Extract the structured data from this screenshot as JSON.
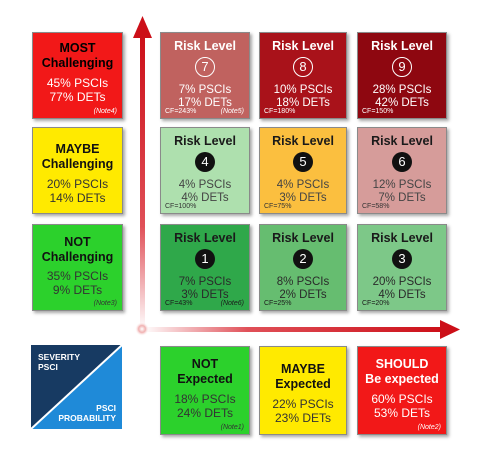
{
  "challenge_rows": [
    {
      "title1": "MOST",
      "title2": "Challenging",
      "psci": "45% PSCIs",
      "det": "77% DETs",
      "note": "(Note4)",
      "color": "#f21818"
    },
    {
      "title1": "MAYBE",
      "title2": "Challenging",
      "psci": "20% PSCIs",
      "det": "14% DETs",
      "note": "",
      "color": "#ffea00"
    },
    {
      "title1": "NOT",
      "title2": "Challenging",
      "psci": "35% PSCIs",
      "det": "9% DETs",
      "note": "(Note3)",
      "color": "#2cd12c"
    }
  ],
  "risk_cells": [
    {
      "title": "Risk Level",
      "level": "7",
      "psci": "7% PSCIs",
      "det": "17% DETs",
      "cf": "CF=243%",
      "note": "(Note5)",
      "color": "#c0625f"
    },
    {
      "title": "Risk Level",
      "level": "8",
      "psci": "10% PSCIs",
      "det": "18% DETs",
      "cf": "CF=180%",
      "note": "",
      "color": "#a9121a"
    },
    {
      "title": "Risk Level",
      "level": "9",
      "psci": "28% PSCIs",
      "det": "42% DETs",
      "cf": "CF=150%",
      "note": "",
      "color": "#8e0710"
    },
    {
      "title": "Risk Level",
      "level": "4",
      "psci": "4% PSCIs",
      "det": "4% DETs",
      "cf": "CF=100%",
      "note": "",
      "color": "#aee0ae"
    },
    {
      "title": "Risk Level",
      "level": "5",
      "psci": "4% PSCIs",
      "det": "3% DETs",
      "cf": "CF=75%",
      "note": "",
      "color": "#fbbf3f"
    },
    {
      "title": "Risk Level",
      "level": "6",
      "psci": "12% PSCIs",
      "det": "7% DETs",
      "cf": "CF=58%",
      "note": "",
      "color": "#d69c9a"
    },
    {
      "title": "Risk Level",
      "level": "1",
      "psci": "7% PSCIs",
      "det": "3% DETs",
      "cf": "CF=43%",
      "note": "(Note6)",
      "color": "#2fa84a"
    },
    {
      "title": "Risk Level",
      "level": "2",
      "psci": "8% PSCIs",
      "det": "2% DETs",
      "cf": "CF=25%",
      "note": "",
      "color": "#66bd70"
    },
    {
      "title": "Risk Level",
      "level": "3",
      "psci": "20% PSCIs",
      "det": "4% DETs",
      "cf": "CF=20%",
      "note": "",
      "color": "#7dc888"
    }
  ],
  "expected_cols": [
    {
      "title1": "NOT",
      "title2": "Expected",
      "psci": "18% PSCIs",
      "det": "24% DETs",
      "note": "(Note1)",
      "color": "#2cd12c"
    },
    {
      "title1": "MAYBE",
      "title2": "Expected",
      "psci": "22% PSCIs",
      "det": "23% DETs",
      "note": "",
      "color": "#ffea00"
    },
    {
      "title1": "SHOULD",
      "title2": "Be expected",
      "psci": "60% PSCIs",
      "det": "53% DETs",
      "note": "(Note2)",
      "color": "#f21818"
    }
  ],
  "axis_label": {
    "severity_line1": "SEVERITY",
    "severity_line2": "PSCI",
    "probability_line1": "PSCI",
    "probability_line2": "PROBABILITY",
    "color_top": "#173a62",
    "color_bottom": "#1f8ad8"
  },
  "arrow_color": "#d0101a"
}
